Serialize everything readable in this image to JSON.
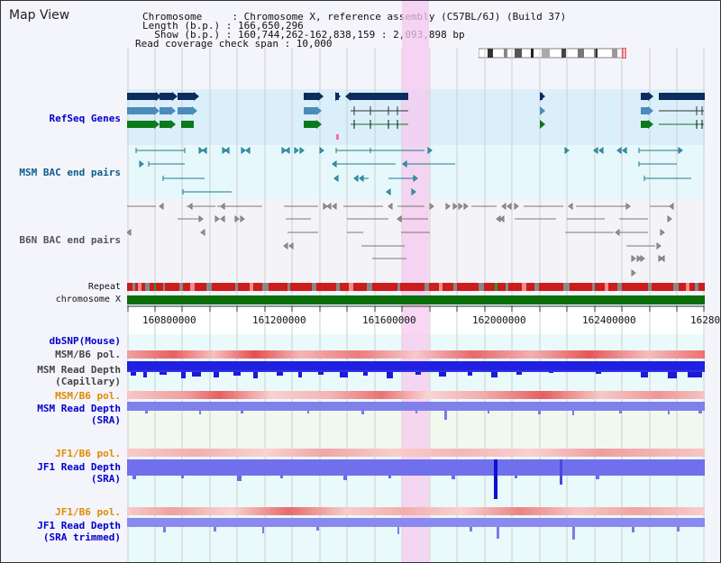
{
  "page_title": "Map View",
  "header": {
    "line1": "Chromosome     : Chromosome X, reference assembly (C57BL/6J) (Build 37)",
    "line2": "Length (b.p.) : 166,650,296",
    "line3": "  Show (b.p.) : 160,744,262-162,838,159 : 2,093,898 bp",
    "line4": "Read coverage check span : 10,000"
  },
  "tracks": {
    "refseq": "RefSeq Genes",
    "msm_bac": "MSM BAC end pairs",
    "b6n_bac": "B6N BAC end pairs",
    "repeat": "Repeat",
    "chromosome": "chromosome X",
    "dbsnp": "dbSNP(Mouse)",
    "msm_b6_pol_1": "MSM/B6 pol.",
    "msm_depth_cap_1": "MSM Read Depth",
    "msm_depth_cap_2": "(Capillary)",
    "msm_b6_pol_2": "MSM/B6 pol.",
    "msm_depth_sra_1": "MSM Read Depth",
    "msm_depth_sra_2": "(SRA)",
    "jf1_b6_pol_1": "JF1/B6 pol.",
    "jf1_depth_sra_1": "JF1 Read Depth",
    "jf1_depth_sra_2": "(SRA)",
    "jf1_b6_pol_2": "JF1/B6 pol.",
    "jf1_depth_trim_1": "JF1 Read Depth",
    "jf1_depth_trim_2": "(SRA trimmed)"
  },
  "axis": {
    "ticks": [
      "160800000",
      "161200000",
      "161600000",
      "162000000",
      "162400000",
      "16280"
    ]
  },
  "colors": {
    "label_blue": "#0000cc",
    "label_orange": "#e08a00",
    "highlight": "#f7c8ef",
    "gene_navy": "#0b2c5c",
    "gene_steel": "#4a8cbb",
    "gene_green": "#0a7a1a",
    "chromosome_bar": "#0a6e0a"
  }
}
